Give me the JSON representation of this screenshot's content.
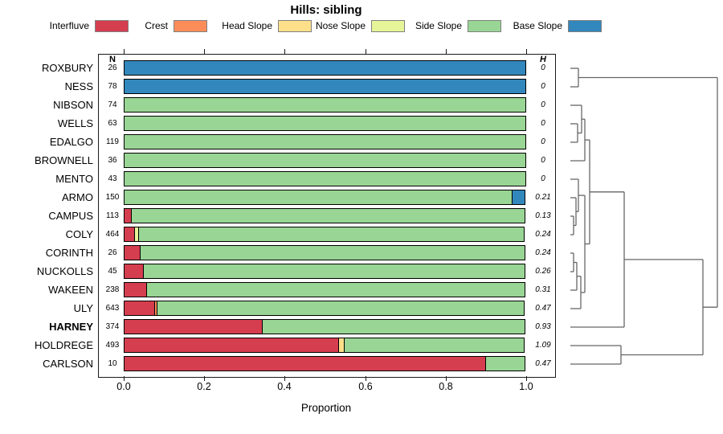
{
  "columns": {
    "n": "N",
    "h": "H"
  },
  "colors": {
    "Interfluve": "#D53E4F",
    "Crest": "#FC8D59",
    "Head Slope": "#FEE08B",
    "Nose Slope": "#E6F598",
    "Side Slope": "#99D594",
    "Base Slope": "#3288BD"
  },
  "legend": [
    {
      "label": "Interfluve"
    },
    {
      "label": "Crest"
    },
    {
      "label": "Head Slope"
    },
    {
      "label": "Nose Slope"
    },
    {
      "label": "Side Slope"
    },
    {
      "label": "Base Slope"
    }
  ],
  "chart_data": {
    "type": "bar",
    "subtype": "stacked-horizontal-proportion",
    "title": "Hills: sibling",
    "xlabel": "Proportion",
    "xlim": [
      0,
      1
    ],
    "x_ticks": [
      0.0,
      0.2,
      0.4,
      0.6,
      0.8,
      1.0
    ],
    "x_tick_labels": [
      "0.0",
      "0.2",
      "0.4",
      "0.6",
      "0.8",
      "1.0"
    ],
    "grid": false,
    "legend_position": "top",
    "series_order": [
      "Interfluve",
      "Crest",
      "Head Slope",
      "Nose Slope",
      "Side Slope",
      "Base Slope"
    ],
    "extra_columns": [
      "N",
      "H"
    ],
    "rows": [
      {
        "name": "ROXBURY",
        "n": 26,
        "h": "0",
        "bold": false,
        "segments": [
          {
            "class": "Base Slope",
            "p": 1.0
          }
        ]
      },
      {
        "name": "NESS",
        "n": 78,
        "h": "0",
        "bold": false,
        "segments": [
          {
            "class": "Base Slope",
            "p": 1.0
          }
        ]
      },
      {
        "name": "NIBSON",
        "n": 74,
        "h": "0",
        "bold": false,
        "segments": [
          {
            "class": "Side Slope",
            "p": 1.0
          }
        ]
      },
      {
        "name": "WELLS",
        "n": 63,
        "h": "0",
        "bold": false,
        "segments": [
          {
            "class": "Side Slope",
            "p": 1.0
          }
        ]
      },
      {
        "name": "EDALGO",
        "n": 119,
        "h": "0",
        "bold": false,
        "segments": [
          {
            "class": "Side Slope",
            "p": 1.0
          }
        ]
      },
      {
        "name": "BROWNELL",
        "n": 36,
        "h": "0",
        "bold": false,
        "segments": [
          {
            "class": "Side Slope",
            "p": 1.0
          }
        ]
      },
      {
        "name": "MENTO",
        "n": 43,
        "h": "0",
        "bold": false,
        "segments": [
          {
            "class": "Side Slope",
            "p": 1.0
          }
        ]
      },
      {
        "name": "ARMO",
        "n": 150,
        "h": "0.21",
        "bold": false,
        "segments": [
          {
            "class": "Side Slope",
            "p": 0.966
          },
          {
            "class": "Base Slope",
            "p": 0.034
          }
        ]
      },
      {
        "name": "CAMPUS",
        "n": 113,
        "h": "0.13",
        "bold": false,
        "segments": [
          {
            "class": "Interfluve",
            "p": 0.02
          },
          {
            "class": "Side Slope",
            "p": 0.98
          }
        ]
      },
      {
        "name": "COLY",
        "n": 464,
        "h": "0.24",
        "bold": false,
        "segments": [
          {
            "class": "Interfluve",
            "p": 0.027
          },
          {
            "class": "Nose Slope",
            "p": 0.013
          },
          {
            "class": "Side Slope",
            "p": 0.96
          }
        ]
      },
      {
        "name": "CORINTH",
        "n": 26,
        "h": "0.24",
        "bold": false,
        "segments": [
          {
            "class": "Interfluve",
            "p": 0.042
          },
          {
            "class": "Side Slope",
            "p": 0.958
          }
        ]
      },
      {
        "name": "NUCKOLLS",
        "n": 45,
        "h": "0.26",
        "bold": false,
        "segments": [
          {
            "class": "Interfluve",
            "p": 0.049
          },
          {
            "class": "Side Slope",
            "p": 0.951
          }
        ]
      },
      {
        "name": "WAKEEN",
        "n": 238,
        "h": "0.31",
        "bold": false,
        "segments": [
          {
            "class": "Interfluve",
            "p": 0.058
          },
          {
            "class": "Side Slope",
            "p": 0.942
          }
        ]
      },
      {
        "name": "ULY",
        "n": 643,
        "h": "0.47",
        "bold": false,
        "segments": [
          {
            "class": "Interfluve",
            "p": 0.078
          },
          {
            "class": "Crest",
            "p": 0.007
          },
          {
            "class": "Side Slope",
            "p": 0.915
          }
        ]
      },
      {
        "name": "HARNEY",
        "n": 374,
        "h": "0.93",
        "bold": true,
        "segments": [
          {
            "class": "Interfluve",
            "p": 0.345
          },
          {
            "class": "Side Slope",
            "p": 0.655
          }
        ]
      },
      {
        "name": "HOLDREGE",
        "n": 493,
        "h": "1.09",
        "bold": false,
        "segments": [
          {
            "class": "Interfluve",
            "p": 0.535
          },
          {
            "class": "Head Slope",
            "p": 0.016
          },
          {
            "class": "Side Slope",
            "p": 0.449
          }
        ]
      },
      {
        "name": "CARLSON",
        "n": 10,
        "h": "0.47",
        "bold": false,
        "segments": [
          {
            "class": "Interfluve",
            "p": 0.9
          },
          {
            "class": "Side Slope",
            "p": 0.1
          }
        ]
      }
    ]
  },
  "dendrogram": {
    "color": "#666666",
    "merges": [
      {
        "x": 720,
        "a": [
          710,
          85
        ],
        "b": [
          710,
          108
        ]
      },
      {
        "x": 719,
        "a": [
          710,
          154
        ],
        "b": [
          710,
          177
        ]
      },
      {
        "x": 724,
        "a": [
          710,
          131
        ],
        "b": [
          719,
          165.5
        ]
      },
      {
        "x": 728,
        "a": [
          724,
          148.25
        ],
        "b": [
          710,
          200
        ]
      },
      {
        "x": 714,
        "a": [
          710,
          269
        ],
        "b": [
          710,
          292
        ]
      },
      {
        "x": 717,
        "a": [
          710,
          246
        ],
        "b": [
          714,
          280.5
        ]
      },
      {
        "x": 720,
        "a": [
          710,
          223
        ],
        "b": [
          717,
          263.25
        ]
      },
      {
        "x": 714,
        "a": [
          710,
          315
        ],
        "b": [
          710,
          338
        ]
      },
      {
        "x": 718,
        "a": [
          714,
          326.5
        ],
        "b": [
          710,
          361
        ]
      },
      {
        "x": 723,
        "a": [
          718,
          343.75
        ],
        "b": [
          710,
          384
        ]
      },
      {
        "x": 728,
        "a": [
          720,
          243.1
        ],
        "b": [
          723,
          363.9
        ]
      },
      {
        "x": 734,
        "a": [
          728,
          174.1
        ],
        "b": [
          728,
          303.5
        ]
      },
      {
        "x": 777,
        "a": [
          734,
          238.8
        ],
        "b": [
          710,
          407
        ]
      },
      {
        "x": 773,
        "a": [
          710,
          430
        ],
        "b": [
          710,
          453
        ]
      },
      {
        "x": 875,
        "a": [
          777,
          322.9
        ],
        "b": [
          773,
          441.5
        ]
      },
      {
        "x": 893,
        "a": [
          720,
          96.5
        ],
        "b": [
          875,
          382.2
        ]
      }
    ]
  }
}
